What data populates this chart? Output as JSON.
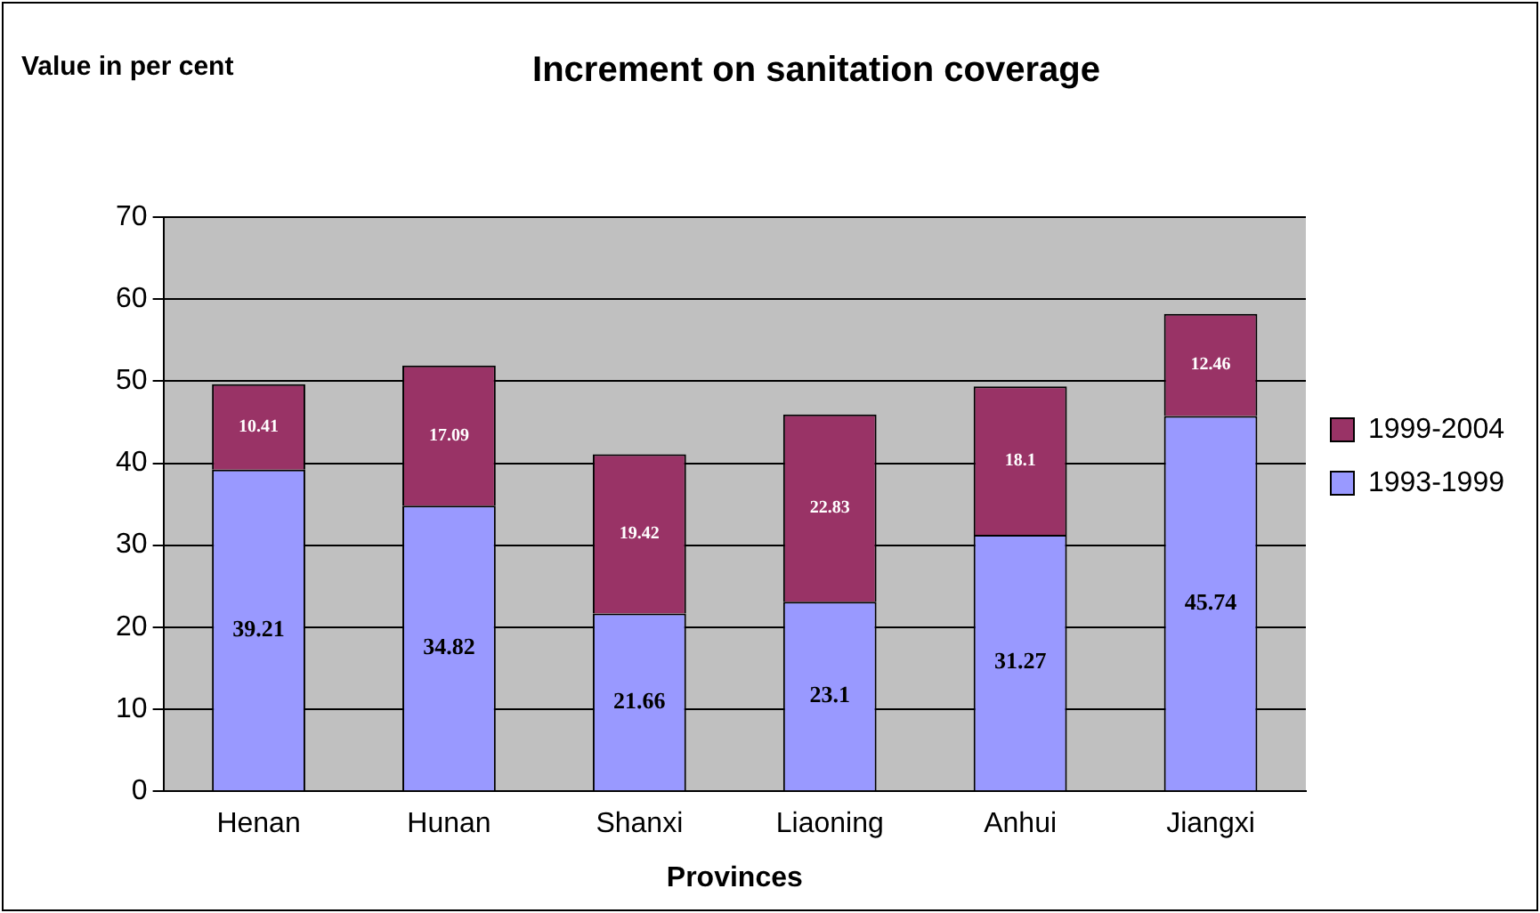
{
  "chart_data": {
    "type": "bar",
    "title": "Increment on sanitation coverage",
    "ylabel": "Value in per cent",
    "xlabel": "Provinces",
    "categories": [
      "Henan",
      "Hunan",
      "Shanxi",
      "Liaoning",
      "Anhui",
      "Jiangxi"
    ],
    "series": [
      {
        "name": "1993-1999",
        "color": "#9999ff",
        "values": [
          39.21,
          34.82,
          21.66,
          23.1,
          31.27,
          45.74
        ]
      },
      {
        "name": "1999-2004",
        "color": "#993366",
        "values": [
          10.41,
          17.09,
          19.42,
          22.83,
          18.1,
          12.46
        ]
      }
    ],
    "stacked": true,
    "data_labels": true,
    "ylim": [
      0,
      70
    ],
    "yticks": [
      0,
      10,
      20,
      30,
      40,
      50,
      60,
      70
    ],
    "grid": "y",
    "legend": "right"
  }
}
